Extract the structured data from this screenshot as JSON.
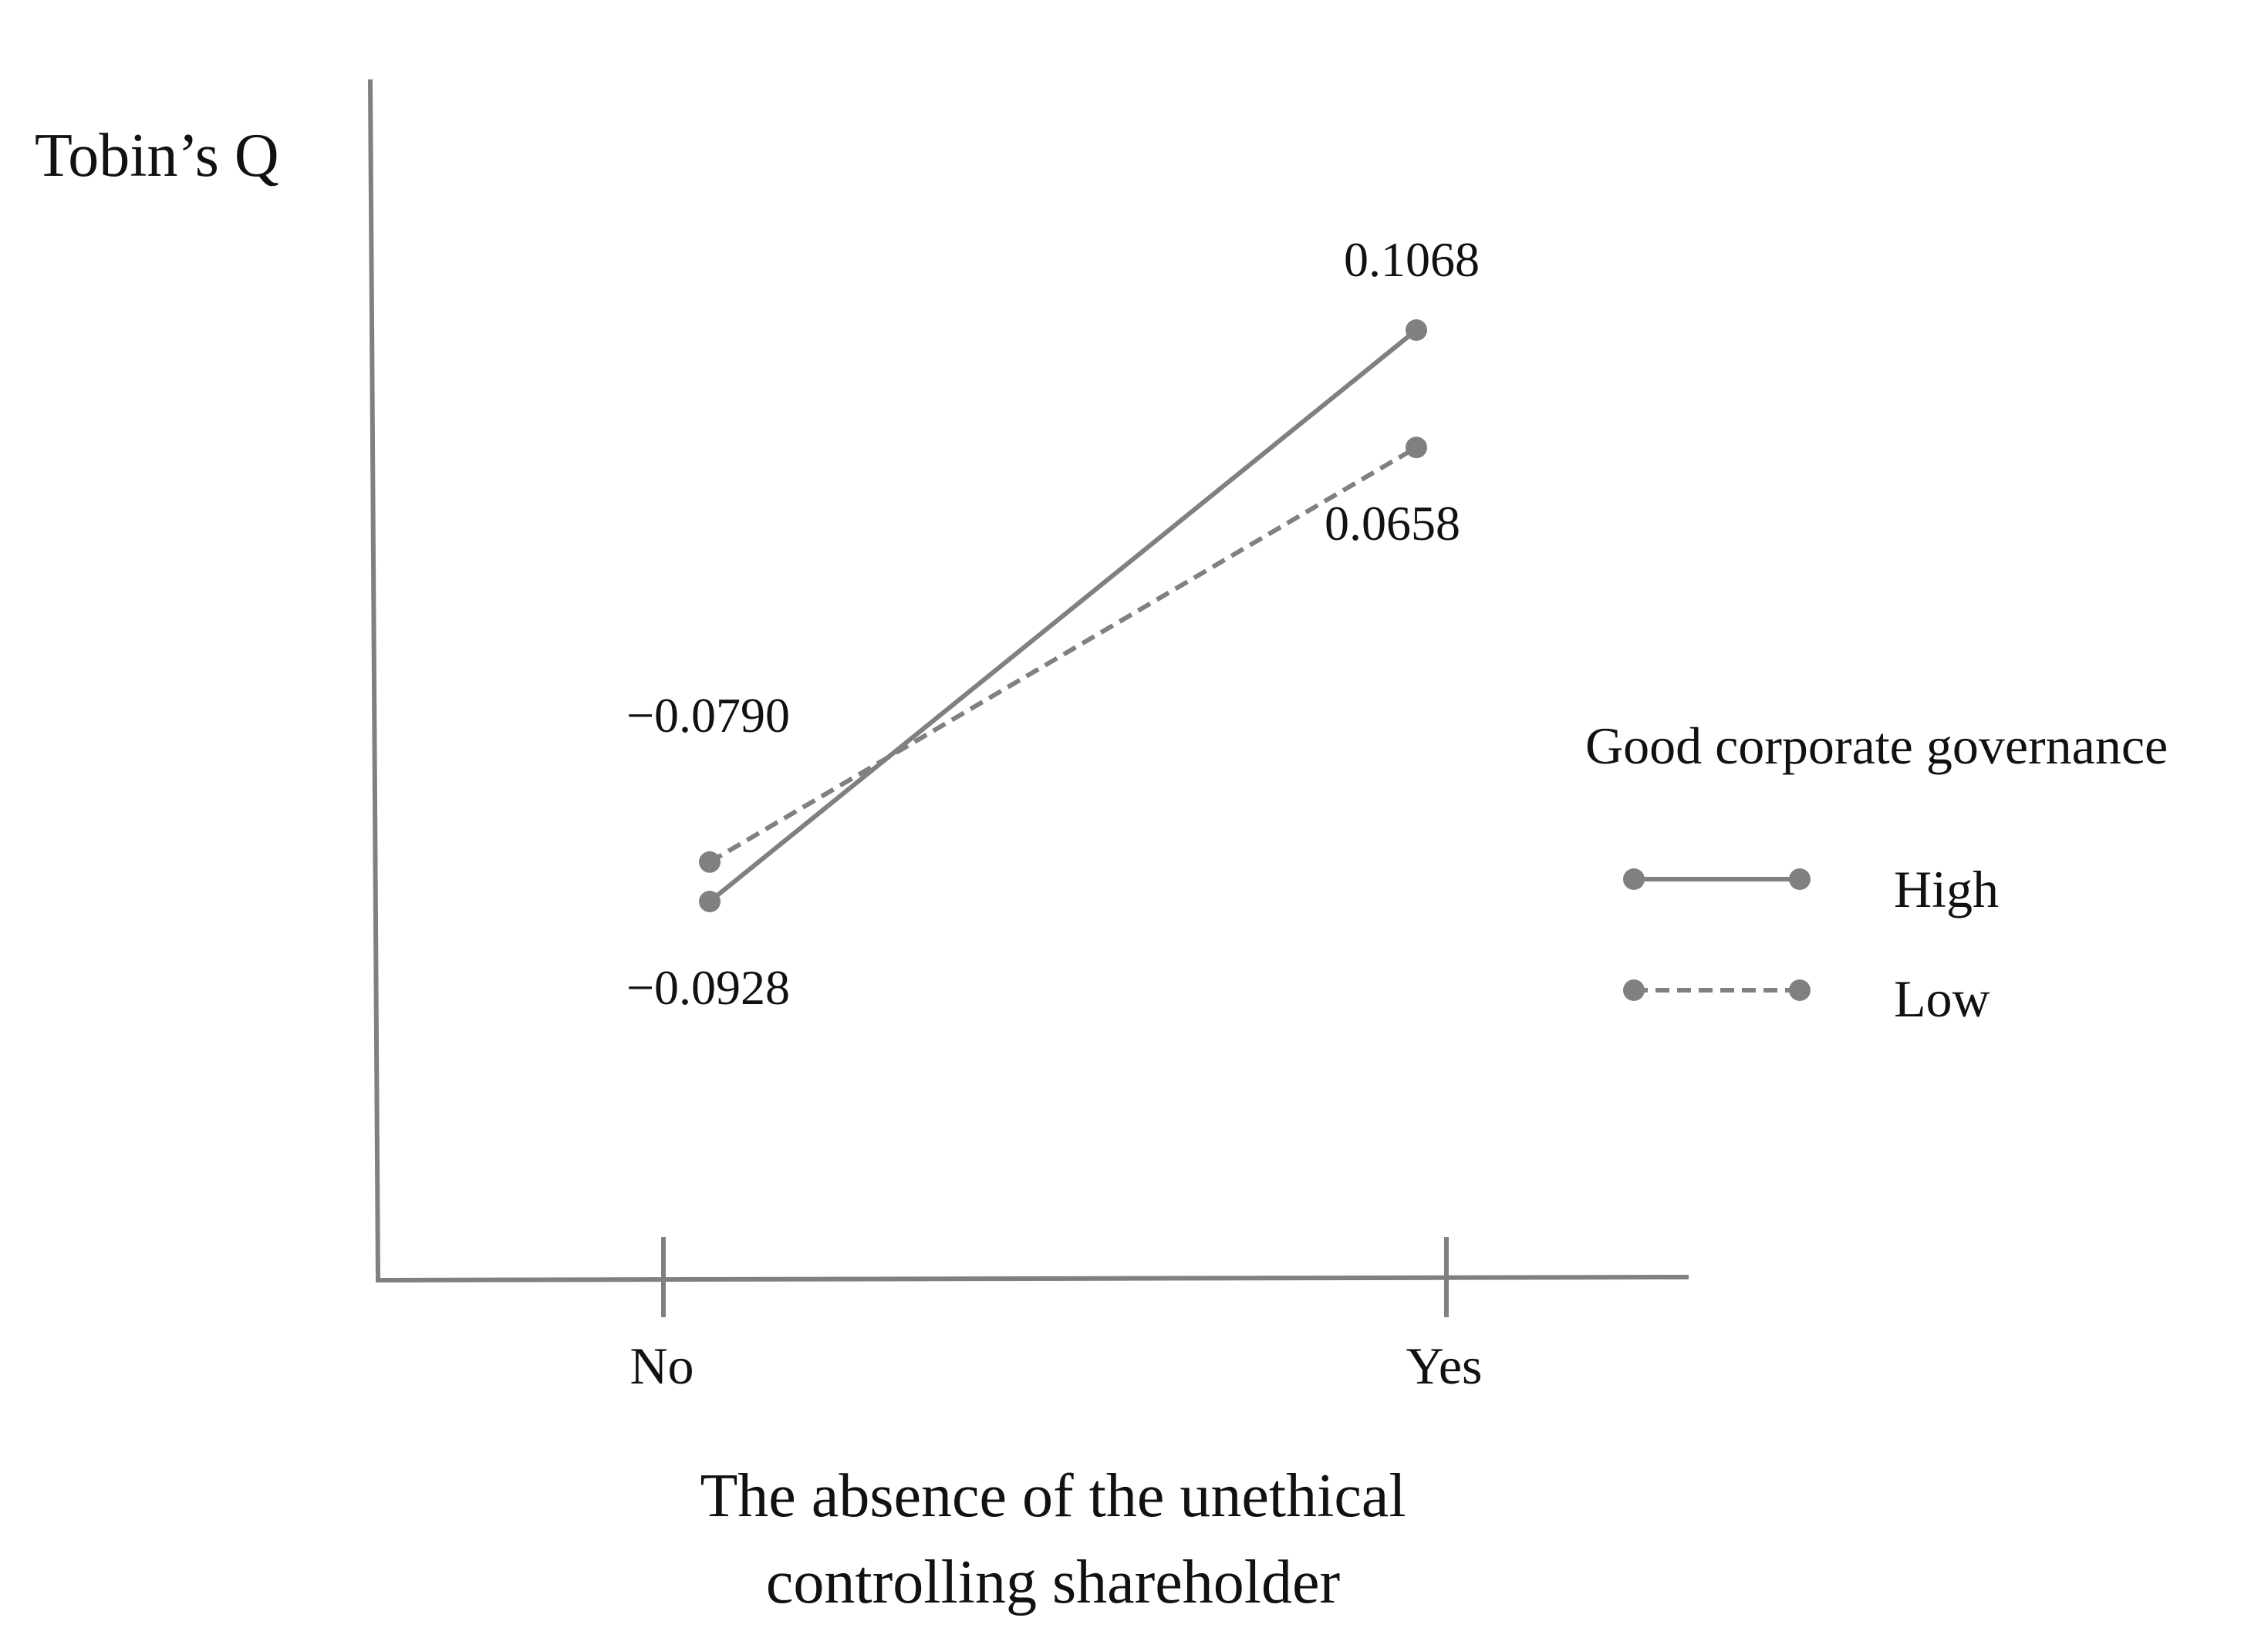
{
  "chart_data": {
    "type": "line",
    "title": "",
    "ylabel": "Tobin’s Q",
    "xlabel_lines": [
      "The absence of the unethical",
      "controlling shareholder"
    ],
    "categories": [
      "No",
      "Yes"
    ],
    "ylim": [
      -0.18,
      0.15
    ],
    "grid": false,
    "legend": {
      "title": "Good corporate governance",
      "placement": "right"
    },
    "series": [
      {
        "name": "High",
        "style": "solid",
        "values": [
          -0.0928,
          0.1068
        ],
        "labels": [
          "−0.0928",
          "0.1068"
        ]
      },
      {
        "name": "Low",
        "style": "dashed",
        "values": [
          -0.079,
          0.0658
        ],
        "labels": [
          "−0.0790",
          "0.0658"
        ]
      }
    ],
    "colors": {
      "series": "#808080",
      "axis": "#808080",
      "text": "#111111"
    }
  }
}
